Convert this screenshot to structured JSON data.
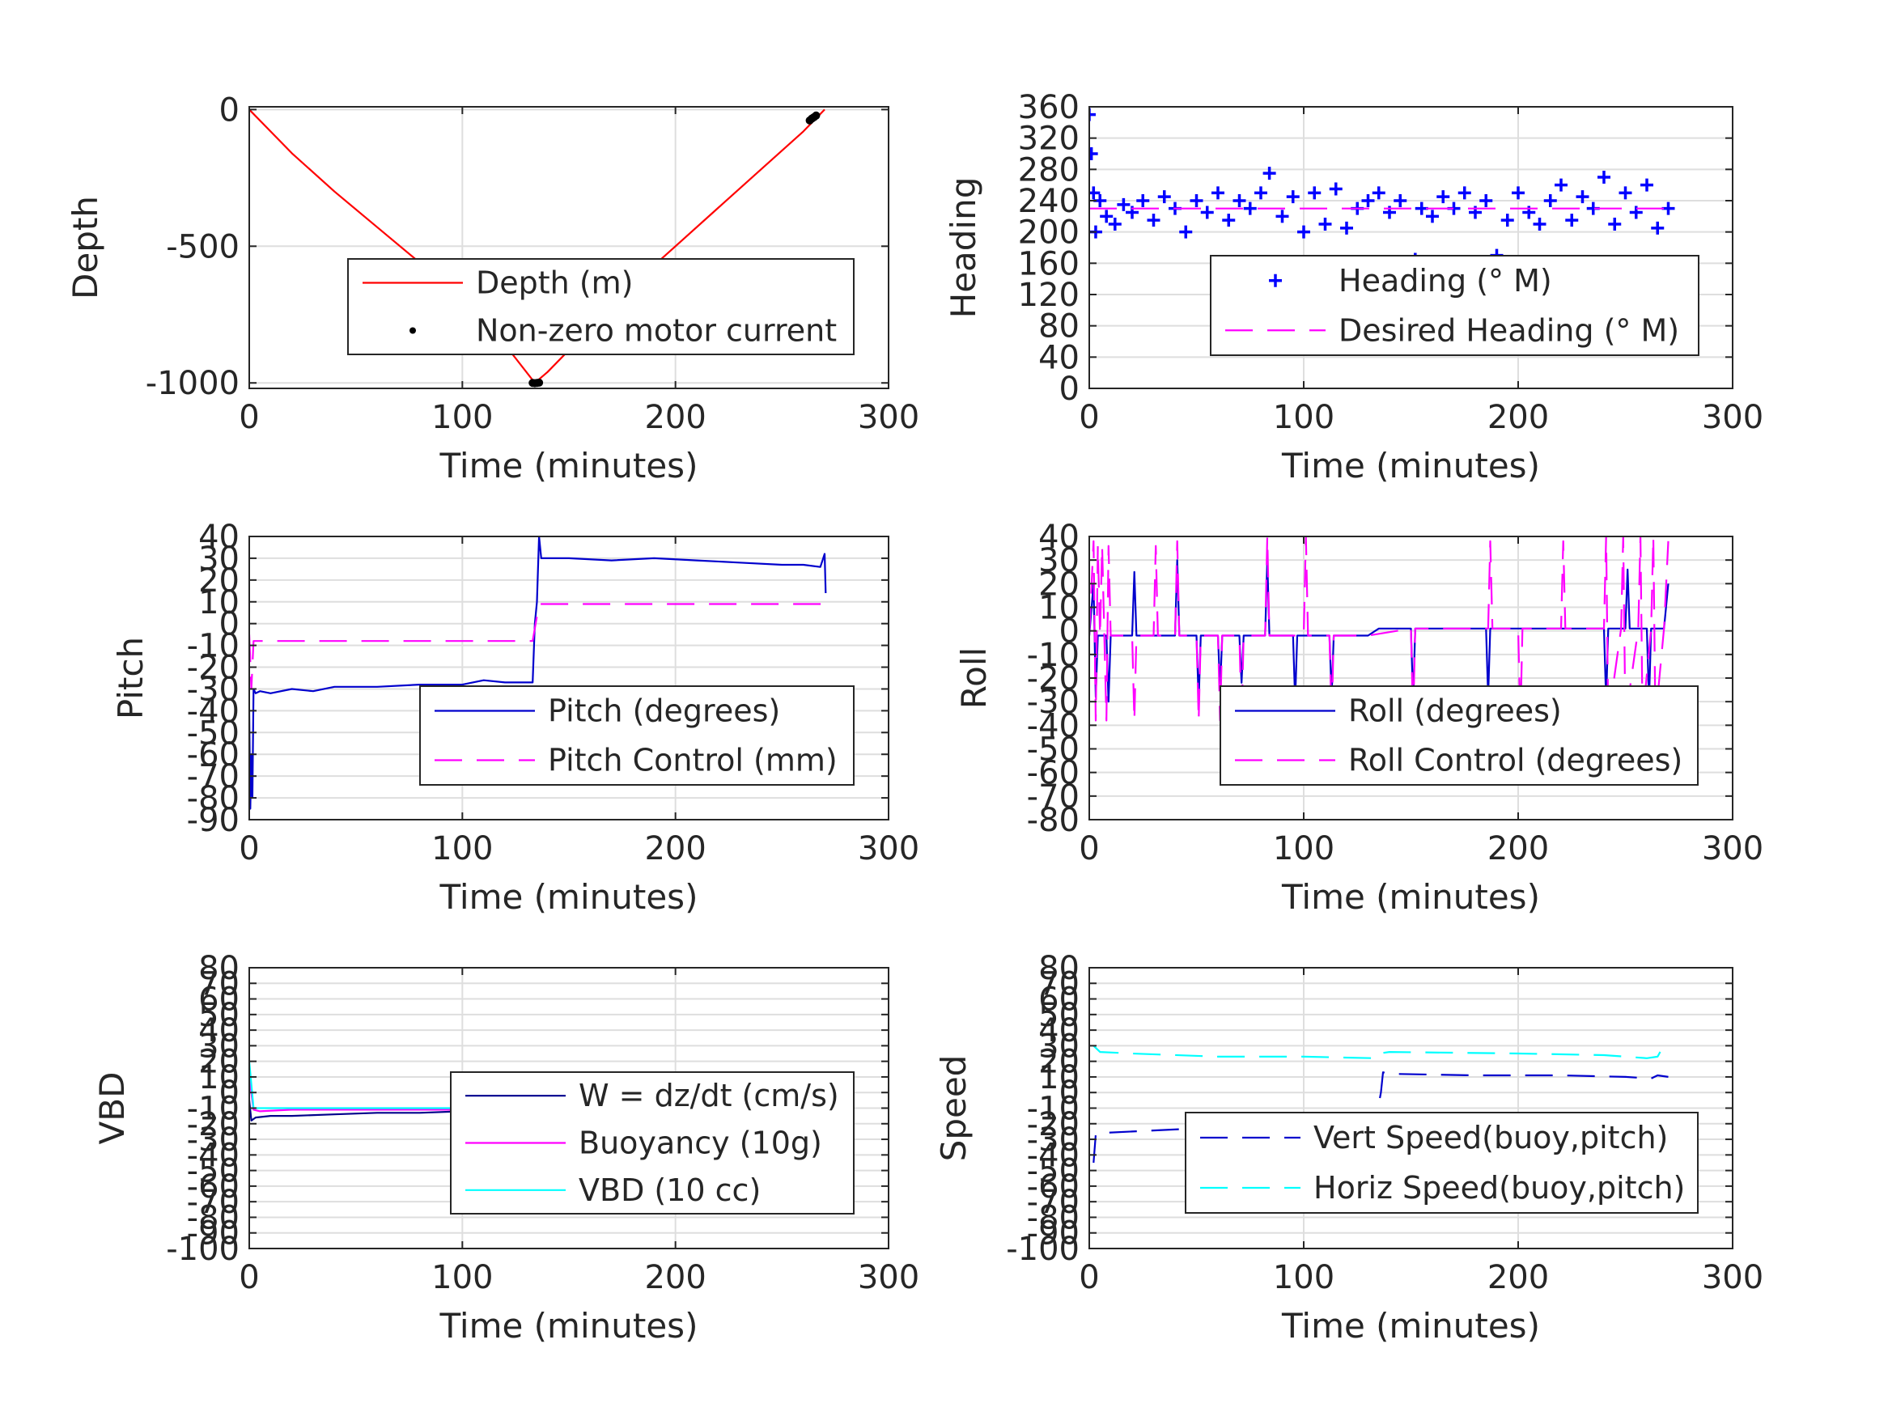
{
  "chart_data": [
    {
      "id": "depth",
      "type": "line",
      "xlabel": "Time (minutes)",
      "ylabel": "Depth",
      "xlim": [
        0,
        300
      ],
      "ylim": [
        -1020,
        10
      ],
      "xticks": [
        0,
        100,
        200,
        300
      ],
      "yticks": [
        0,
        -500,
        -1000
      ],
      "ytick_labels": [
        "0",
        "-500",
        "-1000"
      ],
      "grid": true,
      "legend_position": "bottom-right",
      "series": [
        {
          "name": "Depth (m)",
          "color": "#ff0000",
          "style": "solid",
          "x": [
            0,
            20,
            40,
            60,
            80,
            100,
            120,
            134,
            140,
            160,
            180,
            200,
            220,
            240,
            260,
            270
          ],
          "y": [
            0,
            -160,
            -300,
            -430,
            -560,
            -700,
            -860,
            -1000,
            -960,
            -800,
            -640,
            -500,
            -360,
            -220,
            -80,
            0
          ]
        },
        {
          "name": "Non-zero motor current",
          "color": "#000000",
          "style": "dot",
          "x": [
            133,
            134,
            135,
            136,
            263,
            264,
            265,
            266
          ],
          "y": [
            -1000,
            -1001,
            -1000,
            -999,
            -40,
            -33,
            -28,
            -22
          ]
        }
      ]
    },
    {
      "id": "heading",
      "type": "scatter",
      "xlabel": "Time (minutes)",
      "ylabel": "Heading",
      "xlim": [
        0,
        300
      ],
      "ylim": [
        0,
        360
      ],
      "xticks": [
        0,
        100,
        200,
        300
      ],
      "yticks": [
        0,
        40,
        80,
        120,
        160,
        200,
        240,
        280,
        320,
        360
      ],
      "ytick_labels": [
        "0",
        "40",
        "80",
        "120",
        "160",
        "200",
        "240",
        "280",
        "320",
        "360"
      ],
      "grid": true,
      "legend_position": "bottom-right",
      "series": [
        {
          "name": "Heading (° M)",
          "color": "#0000ff",
          "style": "plus",
          "x": [
            0,
            1,
            2,
            3,
            5,
            8,
            12,
            16,
            20,
            25,
            30,
            35,
            40,
            45,
            50,
            55,
            60,
            65,
            70,
            75,
            80,
            84,
            90,
            95,
            100,
            105,
            110,
            115,
            120,
            125,
            130,
            135,
            140,
            145,
            150,
            152,
            155,
            160,
            165,
            170,
            175,
            180,
            185,
            190,
            195,
            200,
            205,
            210,
            215,
            220,
            225,
            230,
            235,
            240,
            245,
            250,
            255,
            260,
            265,
            270
          ],
          "y": [
            350,
            300,
            250,
            200,
            240,
            220,
            210,
            235,
            225,
            240,
            215,
            245,
            230,
            200,
            240,
            225,
            250,
            215,
            240,
            230,
            250,
            275,
            220,
            245,
            200,
            250,
            210,
            255,
            205,
            230,
            240,
            250,
            225,
            240,
            150,
            165,
            230,
            220,
            245,
            230,
            250,
            225,
            240,
            170,
            215,
            250,
            225,
            210,
            240,
            260,
            215,
            245,
            230,
            270,
            210,
            250,
            225,
            260,
            205,
            230
          ]
        },
        {
          "name": "Desired Heading (° M)",
          "color": "#ff00ff",
          "style": "dashed",
          "x": [
            0,
            270
          ],
          "y": [
            230,
            230
          ]
        }
      ]
    },
    {
      "id": "pitch",
      "type": "line",
      "xlabel": "Time (minutes)",
      "ylabel": "Pitch",
      "xlim": [
        0,
        300
      ],
      "ylim": [
        -90,
        40
      ],
      "xticks": [
        0,
        100,
        200,
        300
      ],
      "yticks": [
        40,
        30,
        20,
        10,
        0,
        -10,
        -20,
        -30,
        -40,
        -50,
        -60,
        -70,
        -80,
        -90
      ],
      "ytick_labels": [
        "40",
        "30",
        "20",
        "10",
        "0",
        "-10",
        "-20",
        "-30",
        "-40",
        "-50",
        "-60",
        "-70",
        "-80",
        "-90"
      ],
      "grid": true,
      "legend_position": "bottom-right",
      "series": [
        {
          "name": "Pitch (degrees)",
          "color": "#0000cd",
          "style": "solid",
          "x": [
            0,
            0.5,
            1,
            1.5,
            2,
            3,
            5,
            10,
            20,
            30,
            40,
            60,
            80,
            100,
            110,
            120,
            133,
            134,
            135,
            136,
            137,
            140,
            150,
            170,
            190,
            210,
            230,
            250,
            260,
            268,
            270,
            270.5
          ],
          "y": [
            -40,
            -85,
            -60,
            -80,
            -30,
            -32,
            -31,
            -32,
            -30,
            -31,
            -29,
            -29,
            -28,
            -28,
            -26,
            -27,
            -27,
            0,
            10,
            40,
            30,
            30,
            30,
            29,
            30,
            29,
            28,
            27,
            27,
            26,
            32,
            14
          ]
        },
        {
          "name": "Pitch Control (mm)",
          "color": "#ff00ff",
          "style": "dashed",
          "x": [
            0,
            1,
            2,
            130,
            133,
            136,
            140,
            270
          ],
          "y": [
            -5,
            -30,
            -8,
            -8,
            -8,
            9,
            9,
            9
          ]
        }
      ]
    },
    {
      "id": "roll",
      "type": "line",
      "xlabel": "Time (minutes)",
      "ylabel": "Roll",
      "xlim": [
        0,
        300
      ],
      "ylim": [
        -80,
        40
      ],
      "xticks": [
        0,
        100,
        200,
        300
      ],
      "yticks": [
        40,
        30,
        20,
        10,
        0,
        -10,
        -20,
        -30,
        -40,
        -50,
        -60,
        -70,
        -80
      ],
      "ytick_labels": [
        "40",
        "30",
        "20",
        "10",
        "0",
        "-10",
        "-20",
        "-30",
        "-40",
        "-50",
        "-60",
        "-70",
        "-80"
      ],
      "grid": true,
      "legend_position": "bottom-right",
      "series": [
        {
          "name": "Roll (degrees)",
          "color": "#0000cd",
          "style": "solid",
          "x": [
            0,
            2,
            3,
            4,
            8,
            9,
            10,
            20,
            21,
            22,
            40,
            41,
            42,
            50,
            51,
            52,
            60,
            61,
            62,
            70,
            71,
            72,
            82,
            83,
            84,
            95,
            96,
            97,
            112,
            113,
            114,
            130,
            135,
            150,
            151,
            152,
            170,
            185,
            186,
            187,
            200,
            220,
            230,
            240,
            241,
            242,
            250,
            251,
            252,
            260,
            261,
            262,
            268,
            270
          ],
          "y": [
            -2,
            20,
            -28,
            -2,
            -2,
            -30,
            -2,
            -2,
            25,
            -2,
            -2,
            30,
            -2,
            -2,
            -30,
            -2,
            -2,
            -25,
            -2,
            -2,
            -22,
            -2,
            -2,
            30,
            -2,
            -2,
            -30,
            -2,
            -2,
            -28,
            -2,
            -2,
            1,
            1,
            -30,
            1,
            1,
            1,
            -28,
            1,
            1,
            1,
            1,
            1,
            -30,
            1,
            1,
            26,
            1,
            1,
            -30,
            1,
            1,
            20
          ]
        },
        {
          "name": "Roll Control (degrees)",
          "color": "#ff00ff",
          "style": "dashed",
          "x": [
            0,
            2,
            3,
            4,
            5,
            6,
            8,
            9,
            10,
            20,
            21,
            22,
            30,
            31,
            32,
            40,
            41,
            42,
            50,
            51,
            52,
            60,
            61,
            62,
            70,
            71,
            72,
            82,
            83,
            84,
            100,
            101,
            102,
            112,
            113,
            114,
            130,
            150,
            151,
            152,
            186,
            187,
            188,
            200,
            201,
            202,
            220,
            221,
            222,
            240,
            241,
            242,
            248,
            249,
            250,
            256,
            257,
            258,
            262,
            263,
            264,
            268,
            270
          ],
          "y": [
            -2,
            38,
            -38,
            36,
            -2,
            36,
            -38,
            36,
            -2,
            -2,
            -38,
            -2,
            -2,
            36,
            -2,
            -2,
            38,
            -2,
            -2,
            -38,
            -2,
            -2,
            -38,
            -2,
            -2,
            -38,
            -2,
            -2,
            40,
            -2,
            -2,
            40,
            -2,
            -2,
            -38,
            -2,
            -2,
            1,
            -38,
            1,
            1,
            38,
            1,
            1,
            -40,
            1,
            1,
            38,
            1,
            1,
            40,
            -38,
            1,
            40,
            -38,
            1,
            40,
            -38,
            1,
            40,
            -38,
            1,
            38
          ]
        }
      ]
    },
    {
      "id": "vbd",
      "type": "line",
      "xlabel": "Time (minutes)",
      "ylabel": "VBD",
      "xlim": [
        0,
        300
      ],
      "ylim": [
        -100,
        80
      ],
      "xticks": [
        0,
        100,
        200,
        300
      ],
      "yticks": [
        80,
        70,
        60,
        50,
        40,
        30,
        20,
        10,
        0,
        -10,
        -20,
        -30,
        -40,
        -50,
        -60,
        -70,
        -80,
        -90,
        -100
      ],
      "ytick_labels": [
        "80",
        "70",
        "60",
        "50",
        "40",
        "30",
        "20",
        "10",
        "0",
        "-10",
        "-20",
        "-30",
        "-40",
        "-50",
        "-60",
        "-70",
        "-80",
        "-90",
        "-100"
      ],
      "grid": true,
      "legend_position": "bottom-right",
      "series": [
        {
          "name": "W = dz/dt (cm/s)",
          "color": "#00008b",
          "style": "solid",
          "x": [
            0,
            1,
            3,
            10,
            20,
            40,
            60,
            80,
            100,
            120,
            133,
            135,
            137,
            140,
            160,
            180,
            200,
            220,
            240,
            260,
            265,
            268,
            270
          ],
          "y": [
            -5,
            -18,
            -16,
            -15,
            -15,
            -14,
            -13,
            -13,
            -12,
            -12,
            -12,
            5,
            13,
            12,
            11,
            12,
            11,
            12,
            11,
            10,
            11,
            8,
            12
          ]
        },
        {
          "name": "Buoyancy (10g)",
          "color": "#ff00ff",
          "style": "solid",
          "x": [
            0,
            2,
            5,
            20,
            133,
            136,
            150,
            200,
            240,
            255,
            265,
            270
          ],
          "y": [
            10,
            -11,
            -12,
            -11,
            -11,
            6,
            7,
            7,
            7,
            5,
            3,
            8
          ]
        },
        {
          "name": "VBD (10 cc)",
          "color": "#00ffff",
          "style": "solid",
          "x": [
            0,
            2,
            5,
            20,
            133,
            136,
            150,
            200,
            250,
            265,
            270
          ],
          "y": [
            20,
            -10,
            -10,
            -10,
            -10,
            6,
            6,
            6,
            6,
            8,
            10
          ]
        }
      ]
    },
    {
      "id": "speed",
      "type": "line",
      "xlabel": "Time (minutes)",
      "ylabel": "Speed",
      "xlim": [
        0,
        300
      ],
      "ylim": [
        -100,
        80
      ],
      "xticks": [
        0,
        100,
        200,
        300
      ],
      "yticks": [
        80,
        70,
        60,
        50,
        40,
        30,
        20,
        10,
        0,
        -10,
        -20,
        -30,
        -40,
        -50,
        -60,
        -70,
        -80,
        -90,
        -100
      ],
      "ytick_labels": [
        "80",
        "70",
        "60",
        "50",
        "40",
        "30",
        "20",
        "10",
        "0",
        "-10",
        "-20",
        "-30",
        "-40",
        "-50",
        "-60",
        "-70",
        "-80",
        "-90",
        "-100"
      ],
      "grid": true,
      "legend_position": "bottom-right",
      "series": [
        {
          "name": "Vert Speed(buoy,pitch)",
          "color": "#0000cd",
          "style": "dashed",
          "x": [
            2,
            3,
            5,
            20,
            50,
            100,
            133,
            136,
            137,
            140,
            180,
            220,
            250,
            262,
            265,
            270
          ],
          "y": [
            -45,
            -27,
            -26,
            -25,
            -23,
            -23,
            -22,
            0,
            13,
            12,
            11,
            11,
            10,
            9,
            11,
            10
          ]
        },
        {
          "name": "Horiz Speed(buoy,pitch)",
          "color": "#00ffff",
          "style": "dashed",
          "x": [
            2,
            5,
            20,
            60,
            100,
            133,
            135,
            140,
            200,
            240,
            260,
            265,
            267
          ],
          "y": [
            30,
            26,
            25,
            23,
            23,
            22,
            25,
            26,
            25,
            24,
            22,
            23,
            28
          ]
        }
      ]
    }
  ]
}
